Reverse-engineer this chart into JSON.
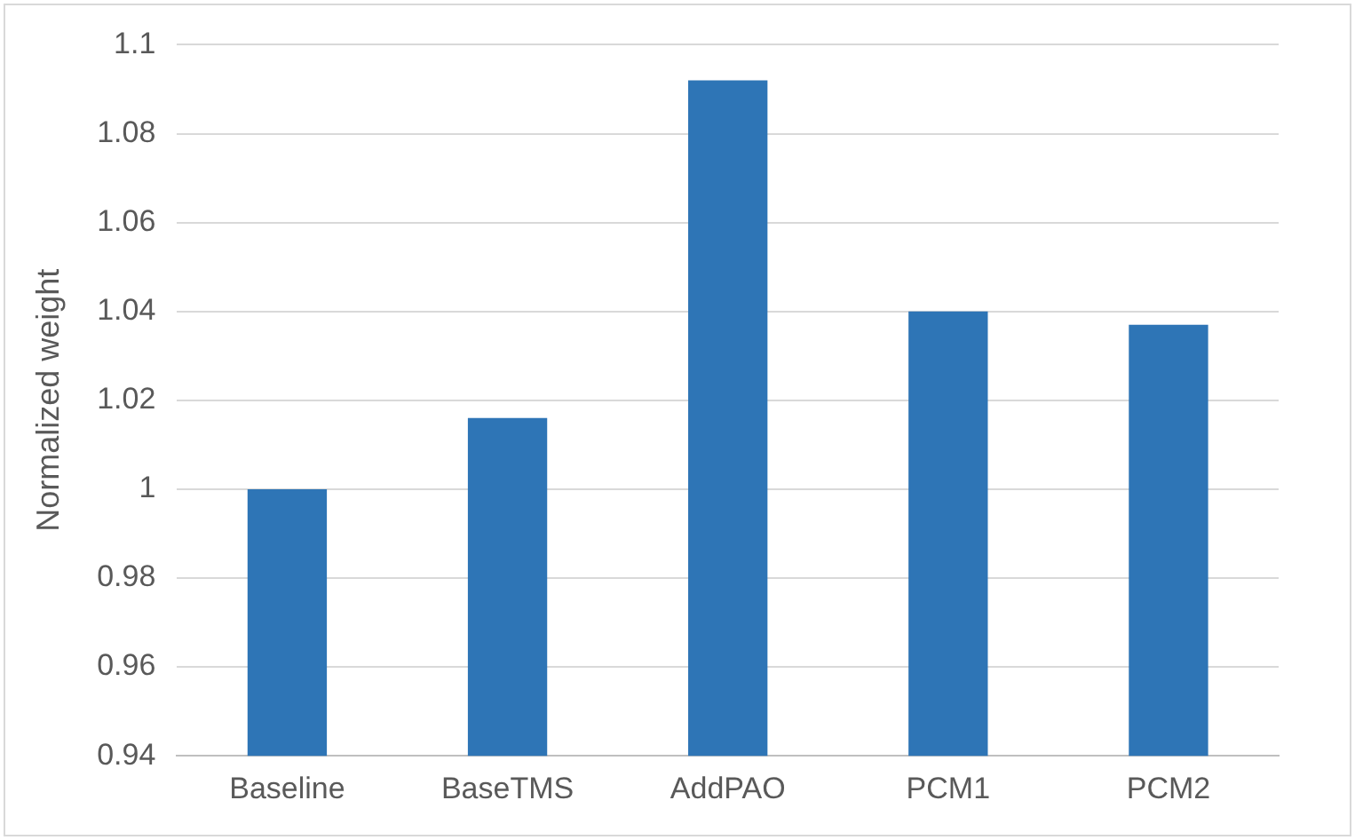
{
  "chart_data": {
    "type": "bar",
    "ylabel": "Normalized weight",
    "categories": [
      "Baseline",
      "BaseTMS",
      "AddPAO",
      "PCM1",
      "PCM2"
    ],
    "values": [
      1.0,
      1.016,
      1.092,
      1.04,
      1.037
    ],
    "color": "#2e75b6",
    "ylim": [
      0.94,
      1.1
    ],
    "yticks": [
      {
        "value": 0.94,
        "label": "0.94"
      },
      {
        "value": 0.96,
        "label": "0.96"
      },
      {
        "value": 0.98,
        "label": "0.98"
      },
      {
        "value": 1,
        "label": "1"
      },
      {
        "value": 1.02,
        "label": "1.02"
      },
      {
        "value": 1.04,
        "label": "1.04"
      },
      {
        "value": 1.06,
        "label": "1.06"
      },
      {
        "value": 1.08,
        "label": "1.08"
      },
      {
        "value": 1.1,
        "label": "1.1"
      }
    ],
    "grid": "y",
    "legend": false
  }
}
